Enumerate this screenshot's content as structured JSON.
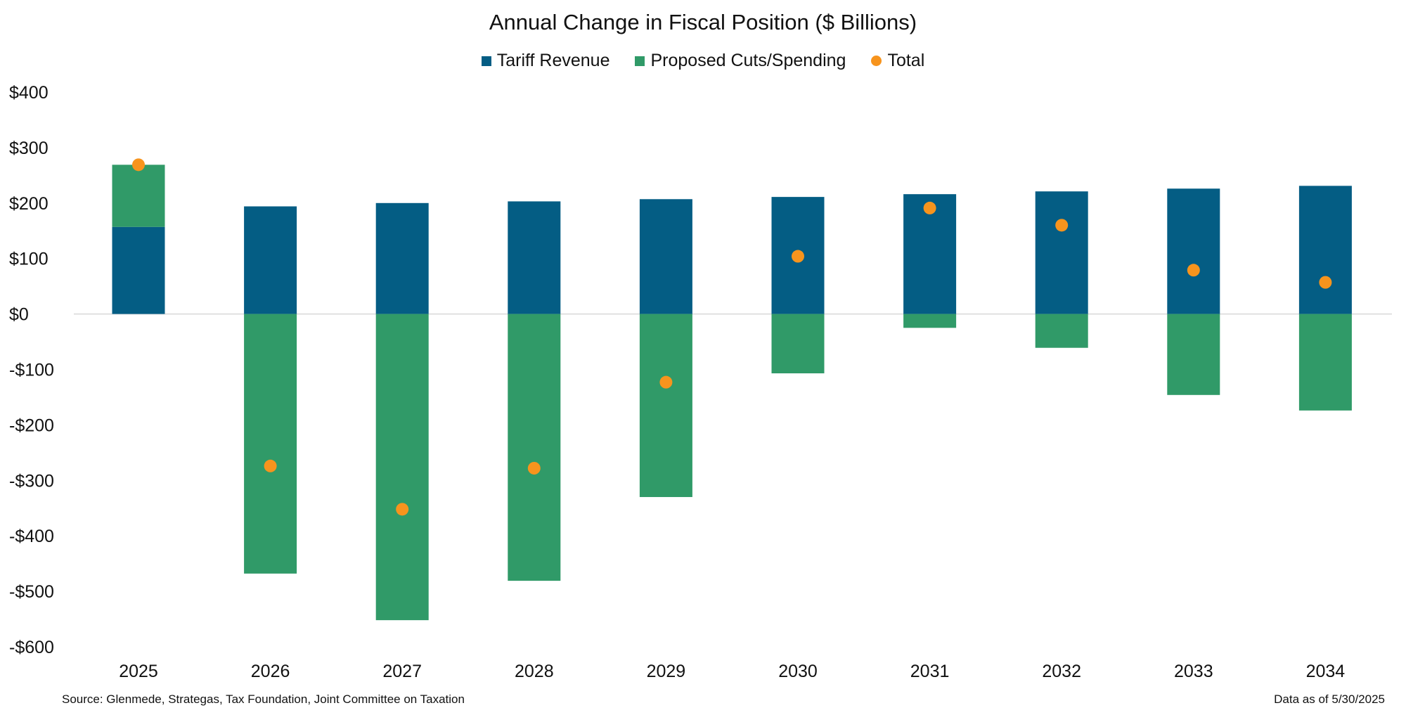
{
  "chart_data": {
    "type": "bar",
    "title": "Annual Change in Fiscal Position ($ Billions)",
    "categories": [
      "2025",
      "2026",
      "2027",
      "2028",
      "2029",
      "2030",
      "2031",
      "2032",
      "2033",
      "2034"
    ],
    "series": [
      {
        "name": "Tariff Revenue",
        "kind": "bar",
        "color": "#045D84",
        "values": [
          157,
          194,
          200,
          203,
          207,
          211,
          216,
          221,
          226,
          231
        ]
      },
      {
        "name": "Proposed Cuts/Spending",
        "kind": "bar",
        "color": "#309A68",
        "values": [
          112,
          -468,
          -552,
          -481,
          -330,
          -107,
          -25,
          -61,
          -146,
          -174
        ]
      },
      {
        "name": "Total",
        "kind": "dot",
        "color": "#F7941D",
        "values": [
          269,
          -274,
          -352,
          -278,
          -123,
          104,
          191,
          160,
          79,
          57
        ]
      }
    ],
    "stacked": true,
    "ylim": [
      -600,
      400
    ],
    "yticks": [
      400,
      300,
      200,
      100,
      0,
      -100,
      -200,
      -300,
      -400,
      -500,
      -600
    ],
    "ytick_labels": [
      "$400",
      "$300",
      "$200",
      "$100",
      "$0",
      "-$100",
      "-$200",
      "-$300",
      "-$400",
      "-$500",
      "-$600"
    ],
    "grid": false,
    "legend_position": "top-center",
    "source": "Source: Glenmede, Strategas, Tax Foundation, Joint Committee on Taxation",
    "note": "Data as of 5/30/2025"
  }
}
